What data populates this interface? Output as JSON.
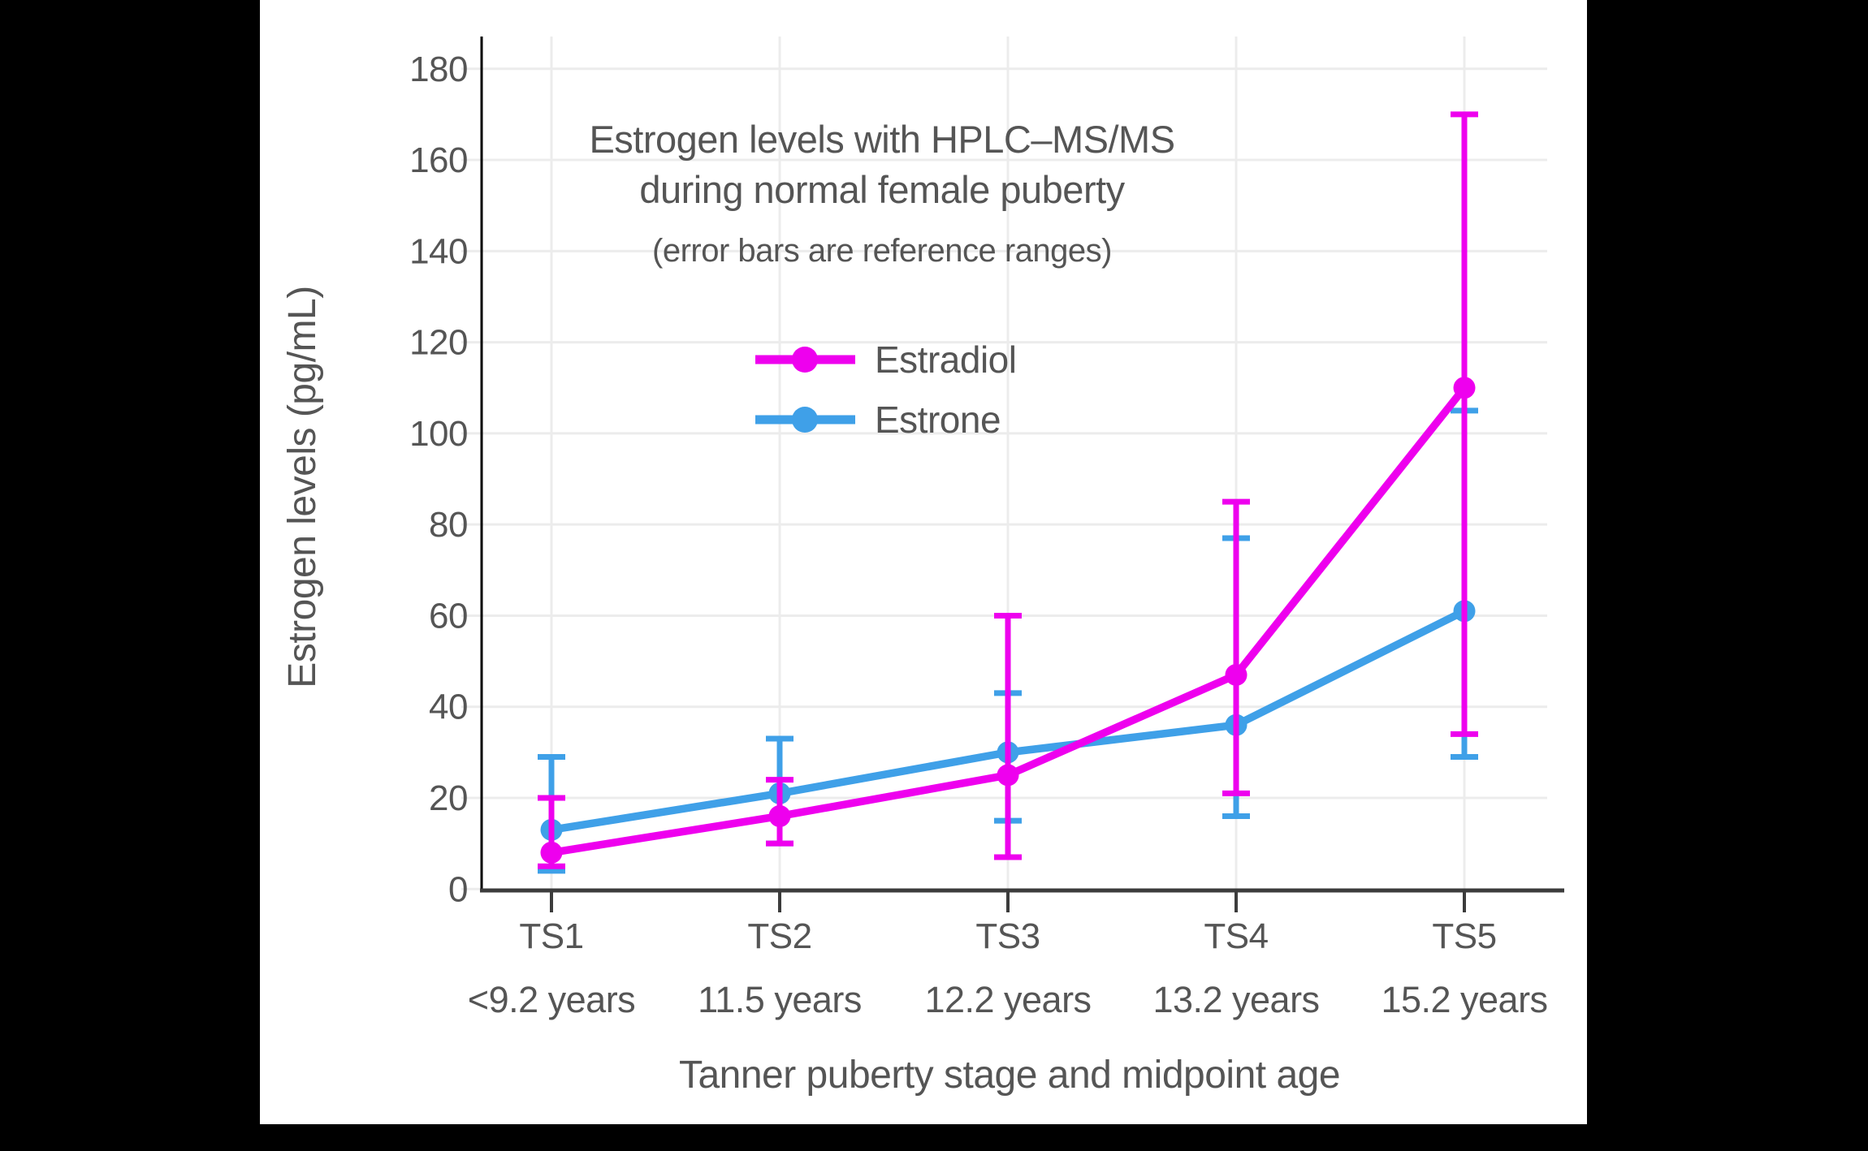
{
  "chart_data": {
    "type": "line",
    "title_lines": [
      "Estrogen levels with HPLC–MS/MS",
      "during normal female puberty"
    ],
    "subtitle": "(error bars are reference ranges)",
    "xlabel": "Tanner puberty stage and midpoint age",
    "ylabel": "Estrogen levels (pg/mL)",
    "categories": [
      "TS1",
      "TS2",
      "TS3",
      "TS4",
      "TS5"
    ],
    "category_sublabels": [
      "<9.2 years",
      "11.5 years",
      "12.2 years",
      "13.2 years",
      "15.2 years"
    ],
    "yticks": [
      0,
      20,
      40,
      60,
      80,
      100,
      120,
      140,
      160,
      180
    ],
    "ylim": [
      0,
      187
    ],
    "grid": true,
    "legend_position": "inside upper-center",
    "error_bar_meaning": "reference ranges",
    "series": [
      {
        "name": "Estrone",
        "color": "#3FA0E8",
        "values": [
          13,
          21,
          30,
          36,
          61
        ],
        "range_low": [
          4,
          10,
          15,
          16,
          29
        ],
        "range_high": [
          29,
          33,
          43,
          77,
          105
        ]
      },
      {
        "name": "Estradiol",
        "color": "#EE00EE",
        "values": [
          8,
          16,
          25,
          47,
          110
        ],
        "range_low": [
          5,
          10,
          7,
          21,
          34
        ],
        "range_high": [
          20,
          24,
          60,
          85,
          170
        ]
      }
    ],
    "legend_order": [
      "Estradiol",
      "Estrone"
    ],
    "colors": {
      "text": "#555555",
      "grid": "#ECECEC",
      "axis_line": "#000000",
      "baseline": "#3C3C3C",
      "canvas": "#FFFFFF",
      "frame": "#000000"
    }
  }
}
